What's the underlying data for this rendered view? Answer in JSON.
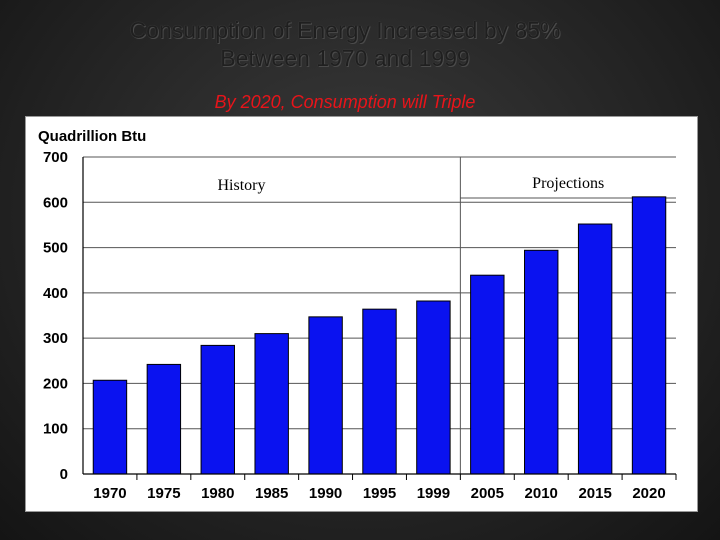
{
  "slide": {
    "title_line1": "Consumption of Energy Increased by 85%",
    "title_line2": "Between 1970 and 1999",
    "subtitle": "By 2020, Consumption will Triple"
  },
  "colors": {
    "bar": "#0a12f0",
    "subtitle": "#e8141a"
  },
  "chart_data": {
    "type": "bar",
    "ylabel": "Quadrillion Btu",
    "ylim": [
      0,
      700
    ],
    "yticks": [
      0,
      100,
      200,
      300,
      400,
      500,
      600,
      700
    ],
    "grid": true,
    "categories": [
      "1970",
      "1975",
      "1980",
      "1985",
      "1990",
      "1995",
      "1999",
      "2005",
      "2010",
      "2015",
      "2020"
    ],
    "values": [
      207,
      242,
      284,
      310,
      347,
      364,
      382,
      439,
      494,
      552,
      612
    ],
    "sections": [
      {
        "label": "History",
        "from_index": 0,
        "to_index": 6
      },
      {
        "label": "Projections",
        "from_index": 7,
        "to_index": 10
      }
    ]
  }
}
